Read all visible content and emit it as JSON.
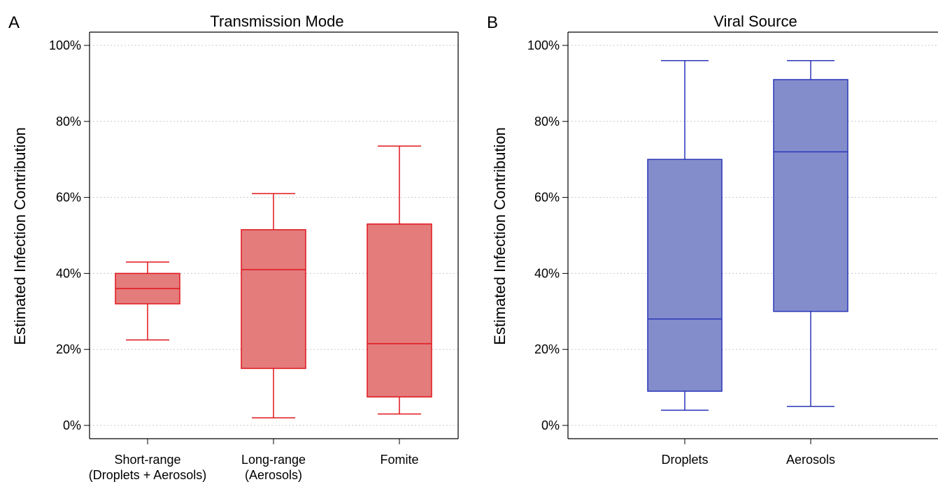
{
  "chart_data": [
    {
      "type": "box",
      "panel_label": "A",
      "title": "Transmission Mode",
      "ylabel": "Estimated Infection Contribution",
      "ylim": [
        0,
        100
      ],
      "yticks": [
        "0%",
        "20%",
        "40%",
        "60%",
        "80%",
        "100%"
      ],
      "grid": "horizontal dotted",
      "color": {
        "fill": "#e47c7c",
        "stroke": "#e0161c"
      },
      "categories": [
        {
          "line1": "Short-range",
          "line2": "(Droplets + Aerosols)"
        },
        {
          "line1": "Long-range",
          "line2": "(Aerosols)"
        },
        {
          "line1": "Fomite",
          "line2": ""
        }
      ],
      "boxes": [
        {
          "min": 22.5,
          "q1": 32,
          "median": 36,
          "q3": 40,
          "max": 43
        },
        {
          "min": 2,
          "q1": 15,
          "median": 41,
          "q3": 51.5,
          "max": 61
        },
        {
          "min": 3,
          "q1": 7.5,
          "median": 21.5,
          "q3": 53,
          "max": 73.5
        }
      ]
    },
    {
      "type": "box",
      "panel_label": "B",
      "title": "Viral Source",
      "ylabel": "Estimated Infection Contribution",
      "ylim": [
        0,
        100
      ],
      "yticks": [
        "0%",
        "20%",
        "40%",
        "60%",
        "80%",
        "100%"
      ],
      "grid": "horizontal dotted",
      "color": {
        "fill": "#848dcc",
        "stroke": "#2a35b8"
      },
      "categories": [
        {
          "line1": "Droplets",
          "line2": ""
        },
        {
          "line1": "Aerosols",
          "line2": ""
        }
      ],
      "boxes": [
        {
          "min": 4,
          "q1": 9,
          "median": 28,
          "q3": 70,
          "max": 96
        },
        {
          "min": 5,
          "q1": 30,
          "median": 72,
          "q3": 91,
          "max": 96
        }
      ]
    }
  ]
}
